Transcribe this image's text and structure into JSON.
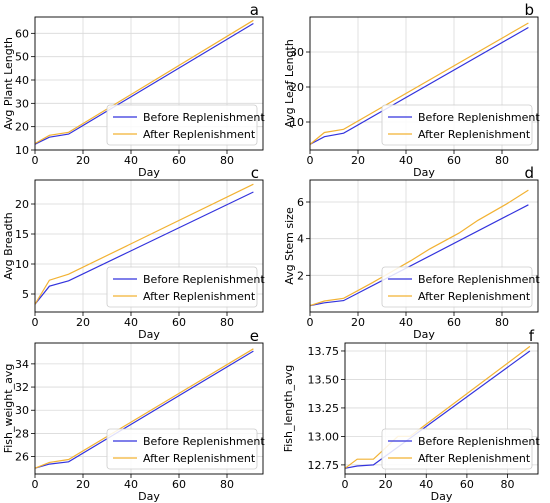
{
  "colors": {
    "before": "#3333dd",
    "after": "#f2b233",
    "grid": "#d9d9d9",
    "axis": "#000000"
  },
  "chart_data": [
    {
      "panel_letter": "a",
      "type": "line",
      "xlabel": "Day",
      "ylabel": "Avg Plant Length",
      "xlim": [
        0,
        95
      ],
      "ylim": [
        10,
        67
      ],
      "xticks": [
        0,
        20,
        40,
        60,
        80
      ],
      "yticks": [
        10,
        20,
        30,
        40,
        50,
        60
      ],
      "ytick_labels": [
        "10",
        "20",
        "30",
        "40",
        "50",
        "60"
      ],
      "grid": true,
      "legend_position": "lower-right",
      "series": [
        {
          "name": "Before Replenishment",
          "color": "#3333dd",
          "x": [
            0,
            6,
            14,
            91
          ],
          "y": [
            12.5,
            15.5,
            16.8,
            64.2
          ]
        },
        {
          "name": "After Replenishment",
          "color": "#f2b233",
          "x": [
            0,
            6,
            14,
            91
          ],
          "y": [
            12.8,
            16.3,
            17.6,
            65.6
          ]
        }
      ]
    },
    {
      "panel_letter": "b",
      "type": "line",
      "xlabel": "Day",
      "ylabel": "Avg Leaf Length",
      "xlim": [
        0,
        95
      ],
      "ylim": [
        2,
        40
      ],
      "xticks": [
        0,
        20,
        40,
        60,
        80
      ],
      "yticks": [
        10,
        20,
        30
      ],
      "ytick_labels": [
        "10",
        "20",
        "30"
      ],
      "grid": true,
      "legend_position": "lower-right",
      "series": [
        {
          "name": "Before Replenishment",
          "color": "#3333dd",
          "x": [
            0,
            6,
            14,
            91
          ],
          "y": [
            3.6,
            5.8,
            6.8,
            37.0
          ]
        },
        {
          "name": "After Replenishment",
          "color": "#f2b233",
          "x": [
            0,
            6,
            14,
            91
          ],
          "y": [
            3.6,
            7.0,
            7.9,
            38.3
          ]
        }
      ]
    },
    {
      "panel_letter": "c",
      "type": "line",
      "xlabel": "Day",
      "ylabel": "Avg Breadth",
      "xlim": [
        0,
        95
      ],
      "ylim": [
        2,
        24
      ],
      "xticks": [
        0,
        20,
        40,
        60,
        80
      ],
      "yticks": [
        5,
        10,
        15,
        20
      ],
      "ytick_labels": [
        "5",
        "10",
        "15",
        "20"
      ],
      "grid": true,
      "legend_position": "lower-right",
      "series": [
        {
          "name": "Before Replenishment",
          "color": "#3333dd",
          "x": [
            0,
            6,
            14,
            91
          ],
          "y": [
            3.3,
            6.3,
            7.2,
            22.0
          ]
        },
        {
          "name": "After Replenishment",
          "color": "#f2b233",
          "x": [
            0,
            6,
            14,
            91
          ],
          "y": [
            3.3,
            7.3,
            8.3,
            23.3
          ]
        }
      ]
    },
    {
      "panel_letter": "d",
      "type": "line",
      "xlabel": "Day",
      "ylabel": "Avg Stem size",
      "xlim": [
        0,
        95
      ],
      "ylim": [
        0,
        7.2
      ],
      "xticks": [
        0,
        20,
        40,
        60,
        80
      ],
      "yticks": [
        2,
        4,
        6
      ],
      "ytick_labels": [
        "2",
        "4",
        "6"
      ],
      "grid": true,
      "legend_position": "lower-right",
      "series": [
        {
          "name": "Before Replenishment",
          "color": "#3333dd",
          "x": [
            0,
            6,
            14,
            91
          ],
          "y": [
            0.35,
            0.5,
            0.62,
            5.85
          ]
        },
        {
          "name": "After Replenishment",
          "color": "#f2b233",
          "x": [
            0,
            6,
            14,
            26,
            42,
            50,
            62,
            70,
            82,
            91
          ],
          "y": [
            0.35,
            0.6,
            0.75,
            1.6,
            2.8,
            3.45,
            4.3,
            5.0,
            5.9,
            6.65
          ]
        }
      ]
    },
    {
      "panel_letter": "e",
      "type": "line",
      "xlabel": "Day",
      "ylabel": "Fish_weight_avg",
      "xlim": [
        0,
        95
      ],
      "ylim": [
        24.5,
        35.8
      ],
      "xticks": [
        0,
        20,
        40,
        60,
        80
      ],
      "yticks": [
        26,
        28,
        30,
        32,
        34
      ],
      "ytick_labels": [
        "26",
        "28",
        "30",
        "32",
        "34"
      ],
      "grid": true,
      "legend_position": "lower-right",
      "series": [
        {
          "name": "Before Replenishment",
          "color": "#3333dd",
          "x": [
            0,
            6,
            14,
            91
          ],
          "y": [
            25.0,
            25.35,
            25.55,
            35.1
          ]
        },
        {
          "name": "After Replenishment",
          "color": "#f2b233",
          "x": [
            0,
            6,
            14,
            91
          ],
          "y": [
            25.0,
            25.5,
            25.75,
            35.3
          ]
        }
      ]
    },
    {
      "panel_letter": "f",
      "type": "line",
      "xlabel": "Day",
      "ylabel": "Fish_length_avg",
      "xlim": [
        0,
        95
      ],
      "ylim": [
        12.67,
        13.82
      ],
      "xticks": [
        0,
        20,
        40,
        60,
        80
      ],
      "yticks": [
        12.75,
        13.0,
        13.25,
        13.5,
        13.75
      ],
      "ytick_labels": [
        "12.75",
        "13.00",
        "13.25",
        "13.50",
        "13.75"
      ],
      "grid": true,
      "legend_position": "lower-right",
      "series": [
        {
          "name": "Before Replenishment",
          "color": "#3333dd",
          "x": [
            0,
            6,
            14,
            91
          ],
          "y": [
            12.72,
            12.74,
            12.75,
            13.75
          ]
        },
        {
          "name": "After Replenishment",
          "color": "#f2b233",
          "x": [
            0,
            6,
            14,
            26,
            32,
            91
          ],
          "y": [
            12.72,
            12.8,
            12.8,
            13.0,
            13.0,
            13.79
          ]
        }
      ]
    }
  ]
}
